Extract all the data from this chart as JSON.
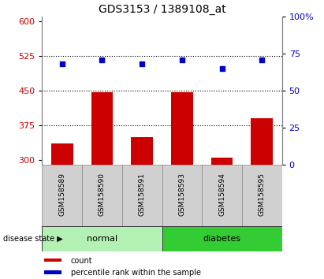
{
  "title": "GDS3153 / 1389108_at",
  "samples": [
    "GSM158589",
    "GSM158590",
    "GSM158591",
    "GSM158593",
    "GSM158594",
    "GSM158595"
  ],
  "bar_values": [
    335,
    447,
    350,
    447,
    305,
    390
  ],
  "dot_values": [
    68,
    71,
    68,
    71,
    65,
    71
  ],
  "ylim_left": [
    290,
    610
  ],
  "ylim_right": [
    0,
    100
  ],
  "yticks_left": [
    300,
    375,
    450,
    525,
    600
  ],
  "yticks_right": [
    0,
    25,
    50,
    75,
    100
  ],
  "hlines": [
    375,
    450,
    525
  ],
  "bar_color": "#cc0000",
  "dot_color": "#0000cc",
  "normal_color": "#b3f0b3",
  "diabetes_color": "#33cc33",
  "group_label": "disease state",
  "legend_count_label": "count",
  "legend_pct_label": "percentile rank within the sample",
  "bar_width": 0.55,
  "figure_width": 4.11,
  "figure_height": 3.54,
  "dpi": 100
}
